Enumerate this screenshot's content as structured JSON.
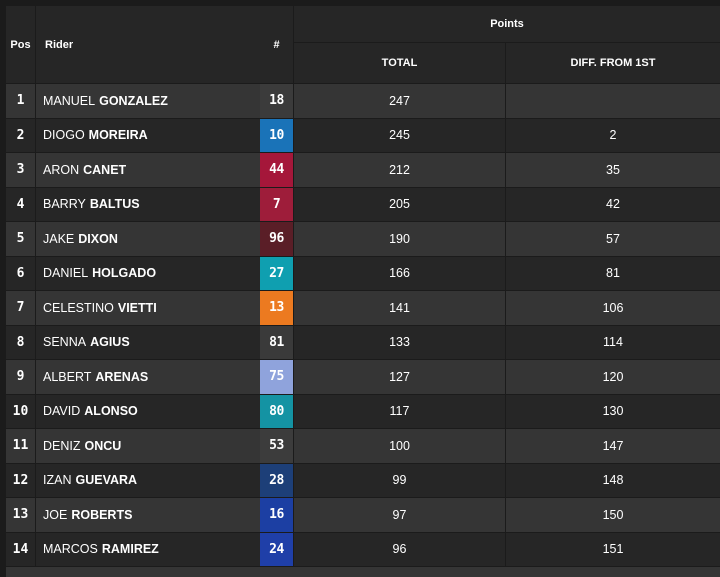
{
  "header": {
    "pos": "Pos",
    "rider": "Rider",
    "number": "#",
    "points": "Points",
    "total": "TOTAL",
    "diff": "DIFF. FROM 1ST"
  },
  "rows": [
    {
      "pos": "1",
      "first": "Manuel",
      "last": "Gonzalez",
      "num": "18",
      "color": "#3b3b3b",
      "total": "247",
      "diff": ""
    },
    {
      "pos": "2",
      "first": "Diogo",
      "last": "Moreira",
      "num": "10",
      "color": "#1a73b8",
      "total": "245",
      "diff": "2"
    },
    {
      "pos": "3",
      "first": "Aron",
      "last": "Canet",
      "num": "44",
      "color": "#a5173a",
      "total": "212",
      "diff": "35"
    },
    {
      "pos": "4",
      "first": "Barry",
      "last": "Baltus",
      "num": "7",
      "color": "#9e1d3a",
      "total": "205",
      "diff": "42"
    },
    {
      "pos": "5",
      "first": "Jake",
      "last": "Dixon",
      "num": "96",
      "color": "#5a1e27",
      "total": "190",
      "diff": "57"
    },
    {
      "pos": "6",
      "first": "Daniel",
      "last": "Holgado",
      "num": "27",
      "color": "#0f9fb0",
      "total": "166",
      "diff": "81"
    },
    {
      "pos": "7",
      "first": "Celestino",
      "last": "Vietti",
      "num": "13",
      "color": "#ec7a20",
      "total": "141",
      "diff": "106"
    },
    {
      "pos": "8",
      "first": "Senna",
      "last": "Agius",
      "num": "81",
      "color": "#3a3a3a",
      "total": "133",
      "diff": "114"
    },
    {
      "pos": "9",
      "first": "Albert",
      "last": "Arenas",
      "num": "75",
      "color": "#8fa3dc",
      "total": "127",
      "diff": "120"
    },
    {
      "pos": "10",
      "first": "David",
      "last": "Alonso",
      "num": "80",
      "color": "#1493a3",
      "total": "117",
      "diff": "130"
    },
    {
      "pos": "11",
      "first": "Deniz",
      "last": "Oncu",
      "num": "53",
      "color": "#3c3c3c",
      "total": "100",
      "diff": "147"
    },
    {
      "pos": "12",
      "first": "Izan",
      "last": "Guevara",
      "num": "28",
      "color": "#1d3f78",
      "total": "99",
      "diff": "148"
    },
    {
      "pos": "13",
      "first": "Joe",
      "last": "Roberts",
      "num": "16",
      "color": "#1c3fa3",
      "total": "97",
      "diff": "150"
    },
    {
      "pos": "14",
      "first": "Marcos",
      "last": "Ramirez",
      "num": "24",
      "color": "#1f3fa8",
      "total": "96",
      "diff": "151"
    }
  ]
}
